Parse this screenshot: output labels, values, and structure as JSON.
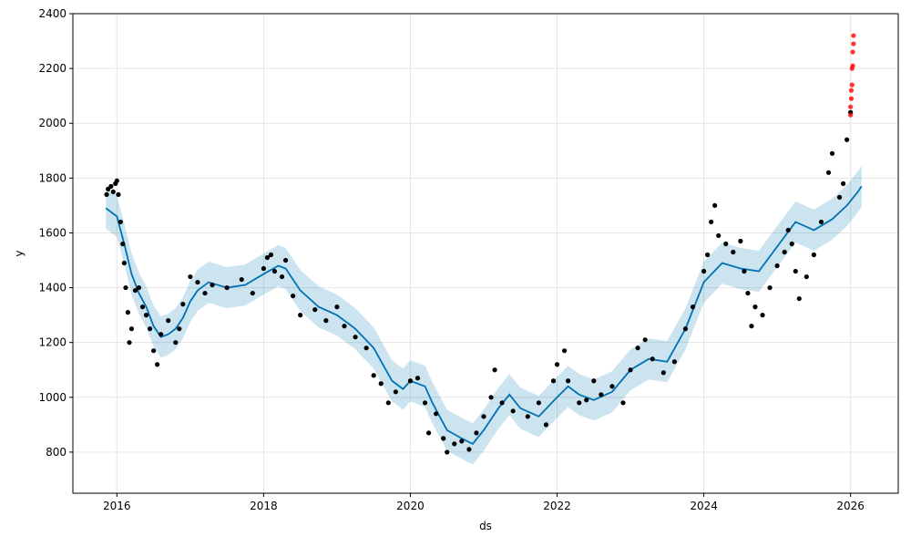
{
  "chart_data": {
    "type": "scatter",
    "xlabel": "ds",
    "ylabel": "y",
    "xlim": [
      2015.4,
      2026.65
    ],
    "ylim": [
      650,
      2400
    ],
    "xticks": [
      2016,
      2018,
      2020,
      2022,
      2024,
      2026
    ],
    "xtick_labels": [
      "2016",
      "2018",
      "2020",
      "2022",
      "2024",
      "2026"
    ],
    "yticks": [
      800,
      1000,
      1200,
      1400,
      1600,
      1800,
      2000,
      2200,
      2400
    ],
    "ytick_labels": [
      "800",
      "1000",
      "1200",
      "1400",
      "1600",
      "1800",
      "2000",
      "2200",
      "2400"
    ],
    "grid": true,
    "colors": {
      "observed": "#000000",
      "outliers": "#ff0000",
      "forecast": "#0072b2",
      "interval": "#0072b2"
    },
    "forecast_line": [
      [
        2015.85,
        1690
      ],
      [
        2016.0,
        1660
      ],
      [
        2016.1,
        1560
      ],
      [
        2016.2,
        1450
      ],
      [
        2016.3,
        1380
      ],
      [
        2016.4,
        1330
      ],
      [
        2016.5,
        1260
      ],
      [
        2016.6,
        1220
      ],
      [
        2016.7,
        1230
      ],
      [
        2016.8,
        1250
      ],
      [
        2016.9,
        1290
      ],
      [
        2017.0,
        1350
      ],
      [
        2017.1,
        1390
      ],
      [
        2017.25,
        1420
      ],
      [
        2017.5,
        1400
      ],
      [
        2017.75,
        1410
      ],
      [
        2018.0,
        1450
      ],
      [
        2018.2,
        1480
      ],
      [
        2018.3,
        1470
      ],
      [
        2018.5,
        1390
      ],
      [
        2018.75,
        1330
      ],
      [
        2019.0,
        1300
      ],
      [
        2019.25,
        1250
      ],
      [
        2019.5,
        1180
      ],
      [
        2019.75,
        1060
      ],
      [
        2019.9,
        1030
      ],
      [
        2020.0,
        1060
      ],
      [
        2020.2,
        1040
      ],
      [
        2020.3,
        980
      ],
      [
        2020.5,
        880
      ],
      [
        2020.7,
        850
      ],
      [
        2020.85,
        830
      ],
      [
        2021.0,
        880
      ],
      [
        2021.2,
        960
      ],
      [
        2021.35,
        1010
      ],
      [
        2021.5,
        960
      ],
      [
        2021.75,
        930
      ],
      [
        2022.0,
        1000
      ],
      [
        2022.15,
        1040
      ],
      [
        2022.3,
        1010
      ],
      [
        2022.5,
        990
      ],
      [
        2022.75,
        1020
      ],
      [
        2023.0,
        1100
      ],
      [
        2023.25,
        1140
      ],
      [
        2023.5,
        1130
      ],
      [
        2023.75,
        1250
      ],
      [
        2024.0,
        1420
      ],
      [
        2024.25,
        1490
      ],
      [
        2024.5,
        1470
      ],
      [
        2024.75,
        1460
      ],
      [
        2025.0,
        1550
      ],
      [
        2025.25,
        1640
      ],
      [
        2025.5,
        1610
      ],
      [
        2025.75,
        1650
      ],
      [
        2025.95,
        1700
      ],
      [
        2026.1,
        1750
      ],
      [
        2026.15,
        1770
      ]
    ],
    "interval_halfwidth": 75,
    "observed": [
      [
        2015.86,
        1740
      ],
      [
        2015.88,
        1760
      ],
      [
        2015.92,
        1770
      ],
      [
        2015.95,
        1750
      ],
      [
        2015.98,
        1780
      ],
      [
        2016.0,
        1790
      ],
      [
        2016.02,
        1740
      ],
      [
        2016.05,
        1640
      ],
      [
        2016.08,
        1560
      ],
      [
        2016.1,
        1490
      ],
      [
        2016.12,
        1400
      ],
      [
        2016.15,
        1310
      ],
      [
        2016.17,
        1200
      ],
      [
        2016.2,
        1250
      ],
      [
        2016.25,
        1390
      ],
      [
        2016.3,
        1400
      ],
      [
        2016.35,
        1330
      ],
      [
        2016.4,
        1300
      ],
      [
        2016.45,
        1250
      ],
      [
        2016.5,
        1170
      ],
      [
        2016.55,
        1120
      ],
      [
        2016.6,
        1230
      ],
      [
        2016.7,
        1280
      ],
      [
        2016.8,
        1200
      ],
      [
        2016.85,
        1250
      ],
      [
        2016.9,
        1340
      ],
      [
        2017.0,
        1440
      ],
      [
        2017.1,
        1420
      ],
      [
        2017.2,
        1380
      ],
      [
        2017.3,
        1410
      ],
      [
        2017.5,
        1400
      ],
      [
        2017.7,
        1430
      ],
      [
        2017.85,
        1380
      ],
      [
        2018.0,
        1470
      ],
      [
        2018.05,
        1510
      ],
      [
        2018.1,
        1520
      ],
      [
        2018.15,
        1460
      ],
      [
        2018.25,
        1440
      ],
      [
        2018.3,
        1500
      ],
      [
        2018.4,
        1370
      ],
      [
        2018.5,
        1300
      ],
      [
        2018.7,
        1320
      ],
      [
        2018.85,
        1280
      ],
      [
        2019.0,
        1330
      ],
      [
        2019.1,
        1260
      ],
      [
        2019.25,
        1220
      ],
      [
        2019.4,
        1180
      ],
      [
        2019.5,
        1080
      ],
      [
        2019.6,
        1050
      ],
      [
        2019.7,
        980
      ],
      [
        2019.8,
        1020
      ],
      [
        2020.0,
        1060
      ],
      [
        2020.1,
        1070
      ],
      [
        2020.2,
        980
      ],
      [
        2020.25,
        870
      ],
      [
        2020.35,
        940
      ],
      [
        2020.45,
        850
      ],
      [
        2020.5,
        800
      ],
      [
        2020.6,
        830
      ],
      [
        2020.7,
        840
      ],
      [
        2020.8,
        810
      ],
      [
        2020.9,
        870
      ],
      [
        2021.0,
        930
      ],
      [
        2021.1,
        1000
      ],
      [
        2021.15,
        1100
      ],
      [
        2021.25,
        980
      ],
      [
        2021.4,
        950
      ],
      [
        2021.6,
        930
      ],
      [
        2021.75,
        980
      ],
      [
        2021.85,
        900
      ],
      [
        2021.95,
        1060
      ],
      [
        2022.0,
        1120
      ],
      [
        2022.1,
        1170
      ],
      [
        2022.15,
        1060
      ],
      [
        2022.3,
        980
      ],
      [
        2022.4,
        990
      ],
      [
        2022.5,
        1060
      ],
      [
        2022.6,
        1010
      ],
      [
        2022.75,
        1040
      ],
      [
        2022.9,
        980
      ],
      [
        2023.0,
        1100
      ],
      [
        2023.1,
        1180
      ],
      [
        2023.2,
        1210
      ],
      [
        2023.3,
        1140
      ],
      [
        2023.45,
        1090
      ],
      [
        2023.6,
        1130
      ],
      [
        2023.75,
        1250
      ],
      [
        2023.85,
        1330
      ],
      [
        2024.0,
        1460
      ],
      [
        2024.05,
        1520
      ],
      [
        2024.1,
        1640
      ],
      [
        2024.15,
        1700
      ],
      [
        2024.2,
        1590
      ],
      [
        2024.3,
        1560
      ],
      [
        2024.4,
        1530
      ],
      [
        2024.5,
        1570
      ],
      [
        2024.55,
        1460
      ],
      [
        2024.6,
        1380
      ],
      [
        2024.65,
        1260
      ],
      [
        2024.7,
        1330
      ],
      [
        2024.8,
        1300
      ],
      [
        2024.9,
        1400
      ],
      [
        2025.0,
        1480
      ],
      [
        2025.1,
        1530
      ],
      [
        2025.15,
        1610
      ],
      [
        2025.2,
        1560
      ],
      [
        2025.25,
        1460
      ],
      [
        2025.3,
        1360
      ],
      [
        2025.4,
        1440
      ],
      [
        2025.5,
        1520
      ],
      [
        2025.6,
        1640
      ],
      [
        2025.7,
        1820
      ],
      [
        2025.75,
        1890
      ],
      [
        2025.85,
        1730
      ],
      [
        2025.9,
        1780
      ],
      [
        2025.95,
        1940
      ],
      [
        2026.0,
        2040
      ]
    ],
    "outliers": [
      [
        2026.0,
        2030
      ],
      [
        2026.0,
        2060
      ],
      [
        2026.01,
        2090
      ],
      [
        2026.01,
        2120
      ],
      [
        2026.02,
        2140
      ],
      [
        2026.02,
        2200
      ],
      [
        2026.03,
        2210
      ],
      [
        2026.03,
        2260
      ],
      [
        2026.04,
        2290
      ],
      [
        2026.04,
        2320
      ]
    ]
  }
}
